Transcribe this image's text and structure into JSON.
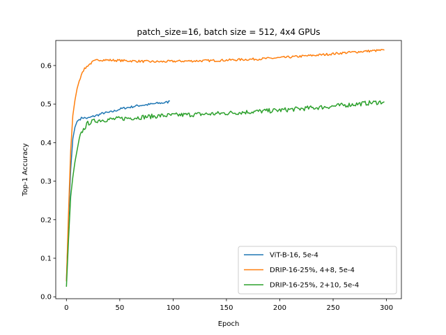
{
  "chart_data": {
    "type": "line",
    "title": "patch_size=16, batch size = 512, 4x4 GPUs",
    "xlabel": "Epoch",
    "ylabel": "Top-1 Accuracy",
    "xlim": [
      -10,
      314
    ],
    "ylim": [
      -0.005,
      0.665
    ],
    "xticks": [
      0,
      50,
      100,
      150,
      200,
      250,
      300
    ],
    "yticks": [
      0.0,
      0.1,
      0.2,
      0.3,
      0.4,
      0.5,
      0.6
    ],
    "ytick_labels": [
      "0.0",
      "0.1",
      "0.2",
      "0.3",
      "0.4",
      "0.5",
      "0.6"
    ],
    "grid": false,
    "legend_position": "lower-right",
    "series": [
      {
        "name": "ViT-B-16, 5e-4",
        "color": "#1f77b4",
        "points": [
          [
            0,
            0.04
          ],
          [
            2,
            0.2
          ],
          [
            4,
            0.33
          ],
          [
            6,
            0.41
          ],
          [
            8,
            0.44
          ],
          [
            10,
            0.455
          ],
          [
            12,
            0.46
          ],
          [
            15,
            0.465
          ],
          [
            20,
            0.463
          ],
          [
            25,
            0.468
          ],
          [
            30,
            0.472
          ],
          [
            35,
            0.477
          ],
          [
            40,
            0.478
          ],
          [
            45,
            0.482
          ],
          [
            50,
            0.487
          ],
          [
            55,
            0.49
          ],
          [
            60,
            0.492
          ],
          [
            65,
            0.495
          ],
          [
            70,
            0.497
          ],
          [
            75,
            0.498
          ],
          [
            80,
            0.5
          ],
          [
            85,
            0.502
          ],
          [
            90,
            0.503
          ],
          [
            95,
            0.505
          ],
          [
            97,
            0.508
          ]
        ]
      },
      {
        "name": "DRIP-16-25%, 4+8, 5e-4",
        "color": "#ff7f0e",
        "points": [
          [
            0,
            0.04
          ],
          [
            2,
            0.22
          ],
          [
            4,
            0.38
          ],
          [
            6,
            0.47
          ],
          [
            8,
            0.51
          ],
          [
            10,
            0.54
          ],
          [
            12,
            0.56
          ],
          [
            15,
            0.585
          ],
          [
            20,
            0.6
          ],
          [
            25,
            0.61
          ],
          [
            30,
            0.615
          ],
          [
            40,
            0.614
          ],
          [
            50,
            0.613
          ],
          [
            60,
            0.612
          ],
          [
            70,
            0.611
          ],
          [
            80,
            0.61
          ],
          [
            90,
            0.61
          ],
          [
            100,
            0.611
          ],
          [
            120,
            0.612
          ],
          [
            140,
            0.613
          ],
          [
            160,
            0.615
          ],
          [
            180,
            0.617
          ],
          [
            200,
            0.62
          ],
          [
            220,
            0.624
          ],
          [
            240,
            0.628
          ],
          [
            260,
            0.633
          ],
          [
            280,
            0.637
          ],
          [
            298,
            0.64
          ]
        ]
      },
      {
        "name": "DRIP-16-25%, 2+10, 5e-4",
        "color": "#2ca02c",
        "points": [
          [
            0,
            0.026
          ],
          [
            2,
            0.15
          ],
          [
            4,
            0.26
          ],
          [
            6,
            0.31
          ],
          [
            8,
            0.35
          ],
          [
            10,
            0.38
          ],
          [
            12,
            0.41
          ],
          [
            15,
            0.43
          ],
          [
            20,
            0.45
          ],
          [
            25,
            0.455
          ],
          [
            30,
            0.458
          ],
          [
            40,
            0.46
          ],
          [
            50,
            0.462
          ],
          [
            60,
            0.464
          ],
          [
            70,
            0.466
          ],
          [
            80,
            0.468
          ],
          [
            90,
            0.47
          ],
          [
            100,
            0.471
          ],
          [
            120,
            0.473
          ],
          [
            140,
            0.475
          ],
          [
            160,
            0.478
          ],
          [
            180,
            0.481
          ],
          [
            200,
            0.484
          ],
          [
            220,
            0.488
          ],
          [
            240,
            0.492
          ],
          [
            260,
            0.497
          ],
          [
            280,
            0.502
          ],
          [
            298,
            0.506
          ]
        ]
      }
    ]
  }
}
